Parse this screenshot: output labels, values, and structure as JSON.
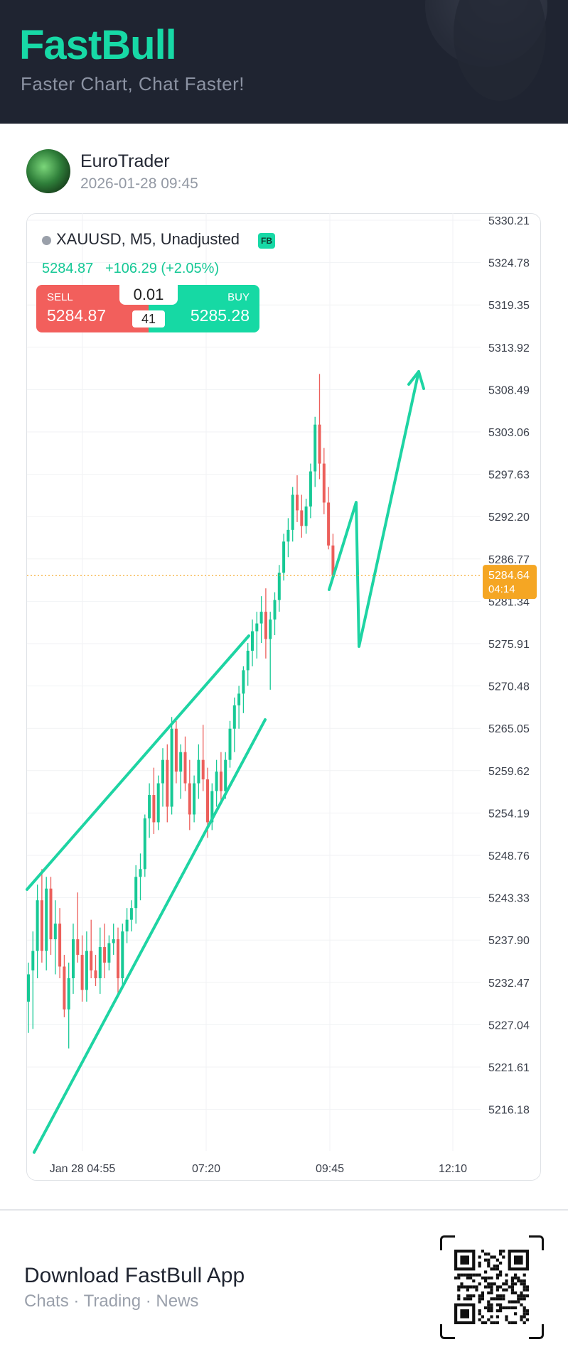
{
  "header": {
    "brand": "FastBull",
    "tagline": "Faster Chart, Chat Faster!"
  },
  "post": {
    "author": "EuroTrader",
    "timestamp": "2026-01-28 09:45"
  },
  "quote": {
    "symbol": "XAUUSD, M5, Unadjusted",
    "badge": "FB",
    "price": "5284.87",
    "change": "+106.29 (+2.05%)",
    "sell_label": "SELL",
    "sell_price": "5284.87",
    "buy_label": "BUY",
    "buy_price": "5285.28",
    "lot": "0.01",
    "spread": "41"
  },
  "chart_data": {
    "type": "candlestick",
    "title": "XAUUSD, M5, Unadjusted",
    "y_ticks": [
      "5330.21",
      "5324.78",
      "5319.35",
      "5313.92",
      "5308.49",
      "5303.06",
      "5297.63",
      "5292.20",
      "5286.77",
      "5281.34",
      "5275.91",
      "5270.48",
      "5265.05",
      "5259.62",
      "5254.19",
      "5248.76",
      "5243.33",
      "5237.90",
      "5232.47",
      "5227.04",
      "5221.61",
      "5216.18"
    ],
    "x_ticks": [
      "Jan 28 04:55",
      "07:20",
      "09:45",
      "12:10"
    ],
    "ylim": [
      5208.0,
      5333.0
    ],
    "current_price": "5284.64",
    "countdown": "04:14",
    "up_color": "#17c995",
    "down_color": "#ec5f5b",
    "candles": [
      [
        5230.0,
        5235.0,
        5226.0,
        5233.5
      ],
      [
        5234.0,
        5239.0,
        5226.5,
        5236.5
      ],
      [
        5236.5,
        5245.0,
        5233.0,
        5243.0
      ],
      [
        5243.0,
        5247.0,
        5235.0,
        5236.5
      ],
      [
        5236.5,
        5246.0,
        5234.0,
        5244.5
      ],
      [
        5244.5,
        5246.0,
        5236.0,
        5238.0
      ],
      [
        5238.0,
        5243.0,
        5233.5,
        5240.0
      ],
      [
        5240.0,
        5242.0,
        5233.0,
        5234.5
      ],
      [
        5234.5,
        5236.0,
        5228.0,
        5229.0
      ],
      [
        5229.0,
        5235.0,
        5224.0,
        5233.0
      ],
      [
        5233.0,
        5240.0,
        5231.0,
        5238.0
      ],
      [
        5238.0,
        5244.0,
        5235.0,
        5236.0
      ],
      [
        5236.0,
        5238.5,
        5230.0,
        5231.5
      ],
      [
        5231.5,
        5239.0,
        5230.0,
        5236.5
      ],
      [
        5236.5,
        5240.5,
        5233.0,
        5234.0
      ],
      [
        5234.0,
        5236.0,
        5232.0,
        5233.0
      ],
      [
        5233.0,
        5239.5,
        5231.0,
        5237.0
      ],
      [
        5237.0,
        5240.0,
        5233.0,
        5235.0
      ],
      [
        5235.0,
        5238.5,
        5234.0,
        5237.5
      ],
      [
        5237.5,
        5240.0,
        5236.0,
        5238.0
      ],
      [
        5238.0,
        5239.5,
        5231.0,
        5233.0
      ],
      [
        5233.0,
        5240.0,
        5232.0,
        5239.0
      ],
      [
        5239.0,
        5242.0,
        5237.5,
        5240.5
      ],
      [
        5240.5,
        5243.0,
        5239.0,
        5242.0
      ],
      [
        5242.0,
        5247.5,
        5240.0,
        5246.0
      ],
      [
        5246.0,
        5249.0,
        5243.0,
        5247.0
      ],
      [
        5247.0,
        5254.0,
        5246.0,
        5253.5
      ],
      [
        5253.5,
        5258.0,
        5251.0,
        5256.5
      ],
      [
        5256.5,
        5260.0,
        5251.5,
        5253.0
      ],
      [
        5253.0,
        5259.0,
        5252.0,
        5258.0
      ],
      [
        5258.0,
        5262.5,
        5255.0,
        5261.0
      ],
      [
        5261.0,
        5263.0,
        5253.0,
        5255.0
      ],
      [
        5255.0,
        5266.5,
        5254.0,
        5265.0
      ],
      [
        5265.0,
        5266.0,
        5258.0,
        5259.5
      ],
      [
        5259.5,
        5263.0,
        5256.0,
        5262.0
      ],
      [
        5262.0,
        5264.0,
        5257.0,
        5258.0
      ],
      [
        5258.0,
        5261.0,
        5252.0,
        5254.0
      ],
      [
        5254.0,
        5259.0,
        5253.0,
        5258.0
      ],
      [
        5258.0,
        5263.0,
        5256.0,
        5261.0
      ],
      [
        5261.0,
        5265.5,
        5257.0,
        5258.5
      ],
      [
        5258.5,
        5260.0,
        5251.0,
        5253.0
      ],
      [
        5253.0,
        5258.0,
        5252.0,
        5257.0
      ],
      [
        5257.0,
        5261.0,
        5255.0,
        5259.5
      ],
      [
        5259.5,
        5262.0,
        5255.5,
        5257.0
      ],
      [
        5257.0,
        5262.0,
        5256.0,
        5261.0
      ],
      [
        5261.0,
        5266.0,
        5260.0,
        5265.0
      ],
      [
        5265.0,
        5269.0,
        5262.0,
        5268.0
      ],
      [
        5268.0,
        5270.5,
        5265.0,
        5269.5
      ],
      [
        5269.5,
        5273.0,
        5267.0,
        5272.5
      ],
      [
        5272.5,
        5276.0,
        5270.5,
        5275.0
      ],
      [
        5275.0,
        5279.0,
        5273.0,
        5277.5
      ],
      [
        5277.5,
        5280.0,
        5274.0,
        5278.5
      ],
      [
        5278.5,
        5282.0,
        5276.0,
        5280.0
      ],
      [
        5280.0,
        5283.0,
        5274.0,
        5276.5
      ],
      [
        5276.5,
        5280.0,
        5270.0,
        5279.0
      ],
      [
        5279.0,
        5282.5,
        5277.0,
        5281.5
      ],
      [
        5281.5,
        5286.0,
        5280.0,
        5285.0
      ],
      [
        5285.0,
        5290.0,
        5284.0,
        5289.0
      ],
      [
        5289.0,
        5292.0,
        5287.0,
        5290.5
      ],
      [
        5290.5,
        5296.0,
        5289.0,
        5295.0
      ],
      [
        5295.0,
        5297.5,
        5291.5,
        5293.0
      ],
      [
        5293.0,
        5295.0,
        5289.5,
        5291.0
      ],
      [
        5291.0,
        5294.5,
        5290.0,
        5293.5
      ],
      [
        5293.5,
        5299.0,
        5292.0,
        5298.0
      ],
      [
        5298.0,
        5305.0,
        5296.0,
        5304.0
      ],
      [
        5304.0,
        5310.5,
        5297.0,
        5299.0
      ],
      [
        5299.0,
        5301.0,
        5292.5,
        5294.0
      ],
      [
        5294.0,
        5296.0,
        5288.0,
        5288.5
      ],
      [
        5288.5,
        5290.0,
        5284.0,
        5284.64
      ]
    ]
  },
  "footer": {
    "title": "Download FastBull App",
    "subtitle": "Chats · Trading · News"
  }
}
